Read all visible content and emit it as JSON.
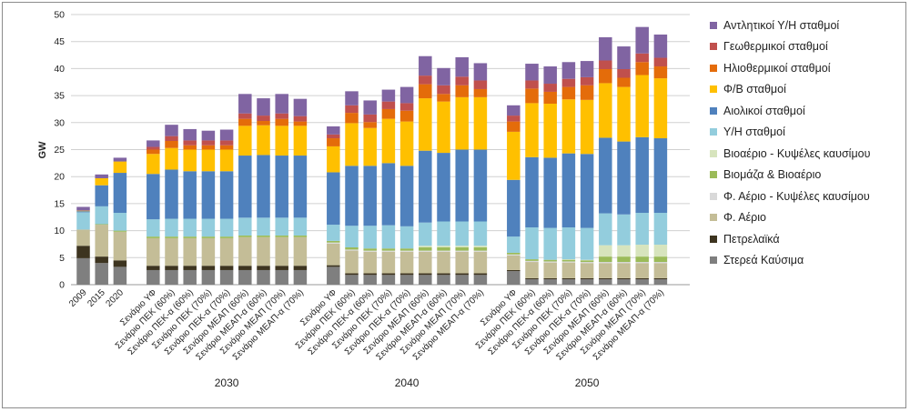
{
  "chart_data": {
    "type": "bar",
    "stacked": true,
    "ylabel": "GW",
    "ylim": [
      0,
      50
    ],
    "yticks": [
      0,
      5,
      10,
      15,
      20,
      25,
      30,
      35,
      40,
      45,
      50
    ],
    "grid": true,
    "legend_position": "right",
    "groups": [
      {
        "label": "",
        "categories": [
          "2009",
          "2015",
          "2020"
        ]
      },
      {
        "label": "2030",
        "categories": [
          "Σενάριο ΥΦ",
          "Σενάριο ΠΕΚ (60%)",
          "Σενάριο ΠΕΚ-α (60%)",
          "Σενάριο ΠΕΚ (70%)",
          "Σενάριο ΠΕΚ-α (70%)",
          "Σενάριο ΜΕΑΠ (60%)",
          "Σενάριο ΜΕΑΠ-α (60%)",
          "Σενάριο ΜΕΑΠ (70%)",
          "Σενάριο ΜΕΑΠ-α (70%)"
        ]
      },
      {
        "label": "2040",
        "categories": [
          "Σενάριο ΥΦ",
          "Σενάριο ΠΕΚ (60%)",
          "Σενάριο ΠΕΚ-α (60%)",
          "Σενάριο ΠΕΚ (70%)",
          "Σενάριο ΠΕΚ-α (70%)",
          "Σενάριο ΜΕΑΠ (60%)",
          "Σενάριο ΜΕΑΠ-α (60%)",
          "Σενάριο ΜΕΑΠ (70%)",
          "Σενάριο ΜΕΑΠ-α (70%)"
        ]
      },
      {
        "label": "2050",
        "categories": [
          "Σενάριο ΥΦ",
          "Σενάριο ΠΕΚ (60%)",
          "Σενάριο ΠΕΚ-α (60%)",
          "Σενάριο ΠΕΚ (70%)",
          "Σενάριο ΠΕΚ-α (70%)",
          "Σενάριο ΜΕΑΠ (60%)",
          "Σενάριο ΜΕΑΠ-α (60%)",
          "Σενάριο ΜΕΑΠ (70%)",
          "Σενάριο ΜΕΑΠ-α (70%)"
        ]
      }
    ],
    "series": [
      {
        "name": "Στερεά Καύσιμα",
        "color": "#7f7f7f",
        "values": [
          4.9,
          4.0,
          3.3,
          2.7,
          2.7,
          2.7,
          2.7,
          2.7,
          2.7,
          2.7,
          2.7,
          2.7,
          3.3,
          1.8,
          1.8,
          1.8,
          1.8,
          1.8,
          1.8,
          1.8,
          1.8,
          2.5,
          1.0,
          1.0,
          1.0,
          1.0,
          1.0,
          1.0,
          1.0,
          1.0
        ]
      },
      {
        "name": "Πετρελαϊκά",
        "color": "#3d3420",
        "values": [
          2.3,
          1.2,
          1.2,
          0.8,
          0.8,
          0.8,
          0.8,
          0.8,
          0.8,
          0.8,
          0.8,
          0.8,
          0.3,
          0.3,
          0.3,
          0.3,
          0.3,
          0.3,
          0.3,
          0.3,
          0.3,
          0.2,
          0.2,
          0.2,
          0.2,
          0.2,
          0.2,
          0.2,
          0.2,
          0.2
        ]
      },
      {
        "name": "Φ. Αέριο",
        "color": "#c4bd97",
        "values": [
          3.0,
          5.9,
          5.3,
          5.1,
          5.1,
          5.1,
          5.1,
          5.1,
          5.3,
          5.3,
          5.3,
          5.3,
          4.0,
          4.2,
          4.0,
          4.0,
          4.0,
          4.0,
          4.0,
          4.0,
          4.0,
          2.7,
          3.0,
          2.9,
          2.9,
          2.8,
          2.8,
          2.8,
          2.8,
          2.8
        ]
      },
      {
        "name": "Φ. Αέριο - Κυψέλες καυσίμου",
        "color": "#d9d9d9",
        "values": [
          0,
          0,
          0,
          0,
          0,
          0,
          0,
          0,
          0,
          0,
          0,
          0,
          0.2,
          0.2,
          0.2,
          0.2,
          0.2,
          0.2,
          0.2,
          0.2,
          0.2,
          0.2,
          0.2,
          0.2,
          0.2,
          0.2,
          0.2,
          0.2,
          0.2,
          0.2
        ]
      },
      {
        "name": "Βιομάζα & Βιοαέριο",
        "color": "#9bbb59",
        "values": [
          0,
          0.1,
          0.2,
          0.3,
          0.3,
          0.3,
          0.3,
          0.3,
          0.3,
          0.3,
          0.3,
          0.3,
          0.3,
          0.4,
          0.4,
          0.4,
          0.4,
          0.6,
          0.6,
          0.6,
          0.6,
          0.3,
          0.3,
          0.3,
          0.3,
          0.3,
          1.0,
          1.0,
          1.0,
          1.0
        ]
      },
      {
        "name": "Βιοαέριο - Κυψέλες καυσίμου",
        "color": "#d7e4bd",
        "values": [
          0,
          0,
          0,
          0,
          0,
          0,
          0,
          0,
          0,
          0,
          0,
          0,
          0,
          0,
          0,
          0,
          0,
          0.3,
          0.3,
          0.3,
          0.3,
          0,
          0,
          0,
          0.1,
          0.1,
          2.1,
          2.1,
          2.2,
          2.2
        ]
      },
      {
        "name": "Υ/Η σταθμοί",
        "color": "#93cddd",
        "values": [
          3.2,
          3.3,
          3.3,
          3.2,
          3.3,
          3.3,
          3.3,
          3.3,
          3.3,
          3.3,
          3.3,
          3.3,
          3.0,
          4.0,
          4.2,
          4.3,
          4.1,
          4.3,
          4.5,
          4.5,
          4.5,
          3.0,
          5.9,
          5.9,
          5.9,
          5.9,
          5.9,
          5.7,
          5.9,
          5.9
        ]
      },
      {
        "name": "Αιολικοί σταθμοί",
        "color": "#4f81bd",
        "values": [
          0.2,
          3.9,
          7.4,
          8.4,
          9.1,
          8.8,
          8.8,
          8.8,
          11.5,
          11.6,
          11.5,
          11.5,
          9.7,
          11.1,
          11.1,
          11.5,
          11.2,
          13.3,
          12.7,
          13.3,
          13.3,
          10.5,
          13.0,
          13.0,
          13.7,
          13.7,
          14.0,
          13.5,
          14.0,
          13.8
        ]
      },
      {
        "name": "Φ/Β σταθμοί",
        "color": "#ffc000",
        "values": [
          0.1,
          1.3,
          2.1,
          3.7,
          4.0,
          4.0,
          4.0,
          4.0,
          5.5,
          5.5,
          5.5,
          5.5,
          4.8,
          7.9,
          7.0,
          8.2,
          8.2,
          9.7,
          9.5,
          9.7,
          9.7,
          8.9,
          10.0,
          10.0,
          10.0,
          10.0,
          10.1,
          10.1,
          11.5,
          11.1
        ]
      },
      {
        "name": "Ηλιοθερμικοί σταθμοί",
        "color": "#e46c0a",
        "values": [
          0,
          0,
          0,
          0.8,
          1.3,
          0.8,
          0.8,
          0.8,
          1.3,
          0.8,
          1.3,
          0.8,
          1.5,
          1.9,
          1.1,
          1.8,
          2.0,
          2.6,
          1.4,
          2.2,
          1.5,
          1.9,
          2.7,
          2.2,
          2.3,
          2.7,
          2.6,
          1.7,
          2.4,
          2.2
        ]
      },
      {
        "name": "Γεωθερμικοί σταθμοί",
        "color": "#c0504d",
        "values": [
          0,
          0,
          0,
          0.5,
          0.9,
          0.9,
          0.9,
          0.9,
          1.0,
          1.0,
          1.0,
          1.0,
          0.7,
          1.4,
          1.4,
          1.4,
          1.4,
          1.6,
          1.6,
          1.6,
          1.6,
          1.1,
          1.5,
          1.5,
          1.5,
          1.5,
          1.6,
          1.6,
          1.6,
          1.6
        ]
      },
      {
        "name": "Αντλητικοί Υ/Η σταθμοί",
        "color": "#8064a2",
        "values": [
          0.7,
          0.7,
          0.7,
          1.2,
          2.1,
          2.1,
          1.8,
          2.0,
          3.6,
          3.2,
          3.6,
          3.2,
          1.5,
          2.6,
          2.6,
          2.2,
          3.0,
          3.6,
          3.2,
          3.6,
          3.2,
          1.9,
          3.1,
          3.2,
          3.1,
          3.0,
          4.3,
          4.2,
          4.9,
          4.3
        ]
      }
    ]
  }
}
